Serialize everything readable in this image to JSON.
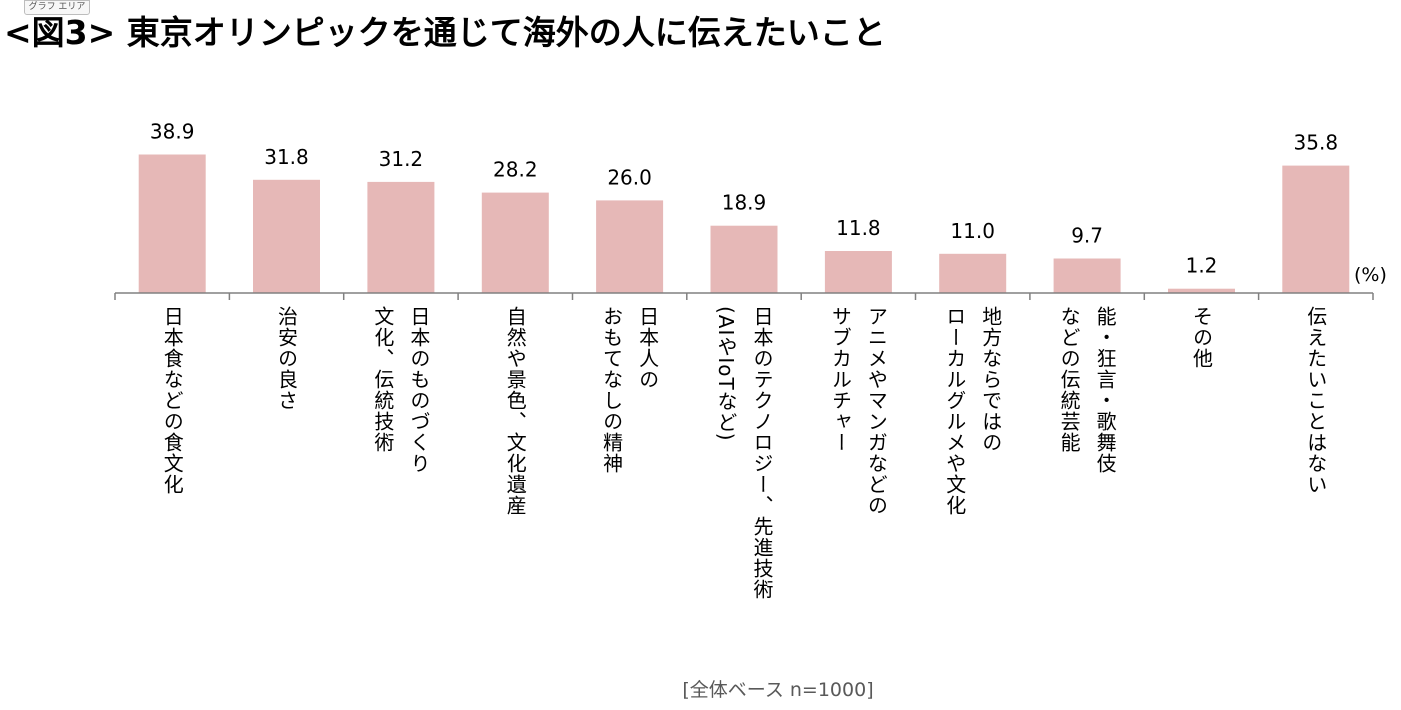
{
  "chip_label": "グラフ エリア",
  "chart_data": {
    "type": "bar",
    "title": "<図3> 東京オリンピックを通じて海外の人に伝えたいこと",
    "unit": "(%)",
    "footnote": "[全体ベース n=1000]",
    "categories": [
      [
        "日本食などの食文化"
      ],
      [
        "治安の良さ"
      ],
      [
        "日本のものづくり",
        "文化、伝統技術"
      ],
      [
        "自然や景色、文化遺産"
      ],
      [
        "日本人の",
        "おもてなしの精神"
      ],
      [
        "日本のテクノロジー、先進技術",
        "(AIやIoTなど)"
      ],
      [
        "アニメやマンガなどの",
        "サブカルチャー"
      ],
      [
        "地方ならではの",
        "ローカルグルメや文化"
      ],
      [
        "能・狂言・歌舞伎",
        "などの伝統芸能"
      ],
      [
        "その他"
      ],
      [
        "伝えたいことはない"
      ]
    ],
    "values": [
      38.9,
      31.8,
      31.2,
      28.2,
      26.0,
      18.9,
      11.8,
      11.0,
      9.7,
      1.2,
      35.8
    ],
    "value_labels": [
      "38.9",
      "31.8",
      "31.2",
      "28.2",
      "26.0",
      "18.9",
      "11.8",
      "11.0",
      "9.7",
      "1.2",
      "35.8"
    ],
    "bar_color": "#e6b8b7",
    "axis_color": "#808080"
  }
}
